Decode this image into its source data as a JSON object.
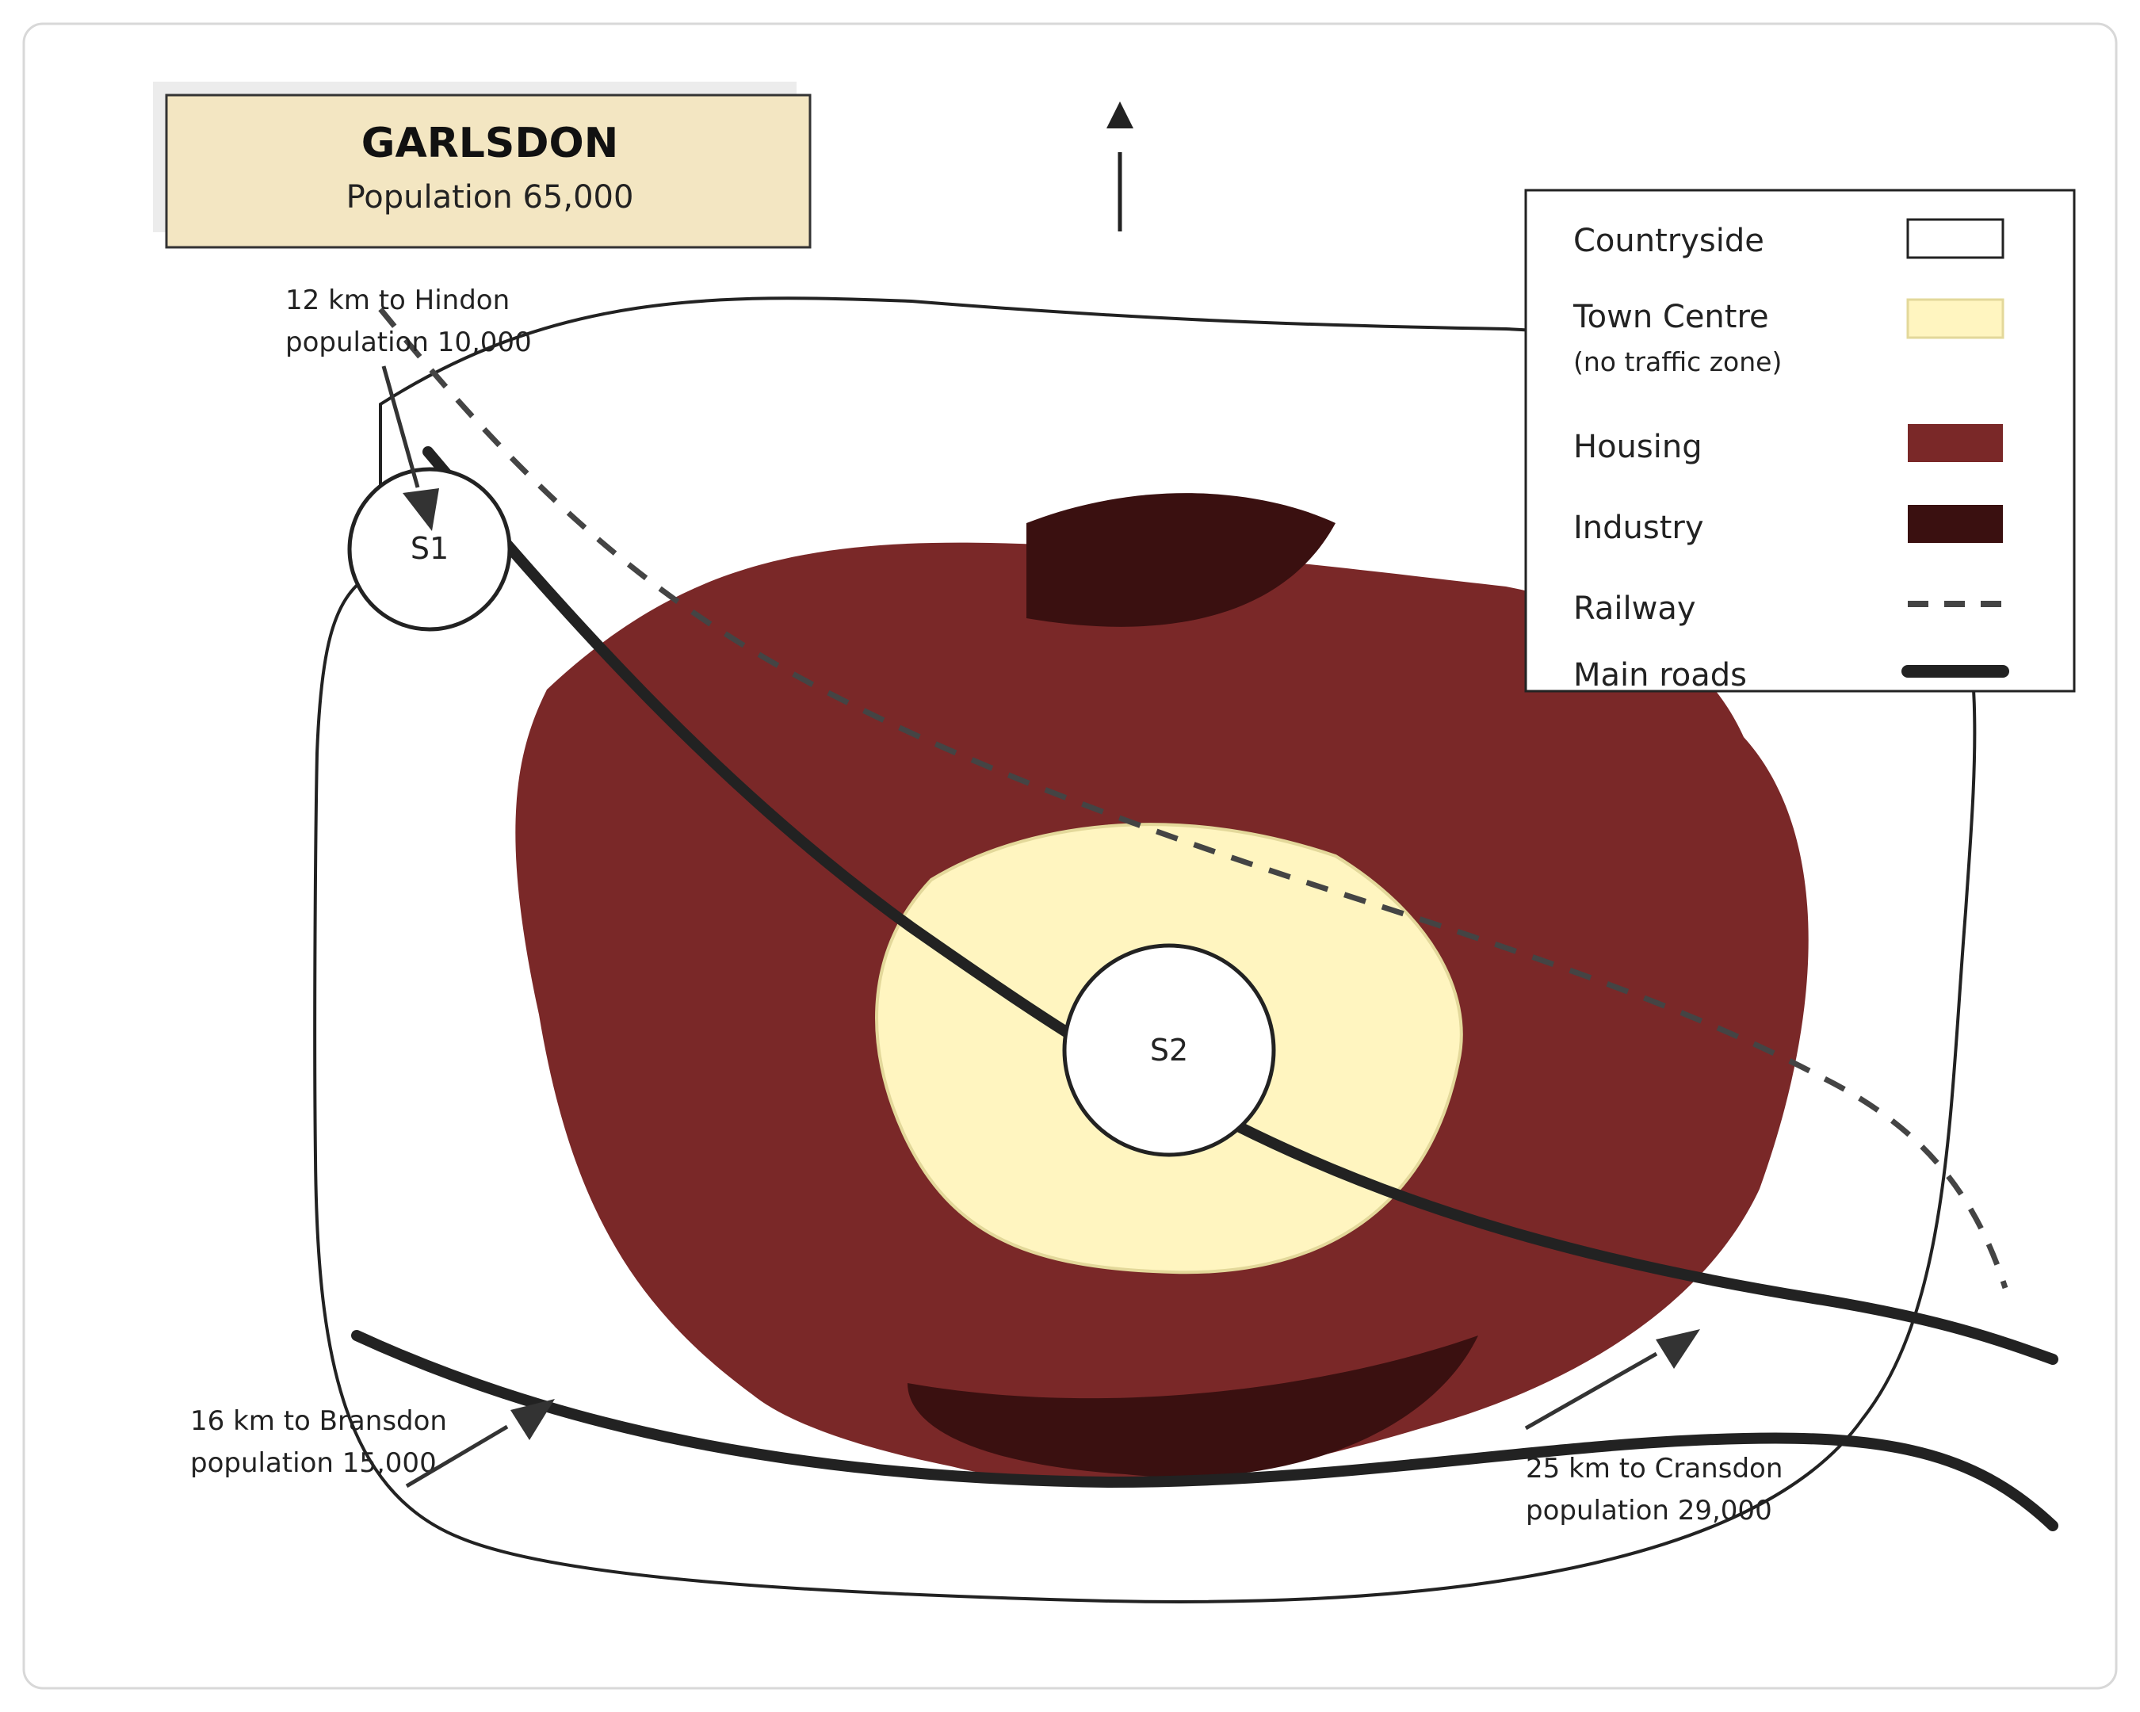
{
  "title": {
    "name": "GARLSDON",
    "population": "Population 65,000"
  },
  "stations": {
    "s1": "S1",
    "s2": "S2"
  },
  "connections": {
    "hindon": {
      "line1": "12 km to Hindon",
      "line2": "population 10,000"
    },
    "bransdon": {
      "line1": "16 km to Bransdon",
      "line2": "population 15,000"
    },
    "cransdon": {
      "line1": "25 km to Cransdon",
      "line2": "population 29,000"
    }
  },
  "legend": {
    "items": [
      {
        "label": "Countryside",
        "swatch": "box-white"
      },
      {
        "label": "Town Centre",
        "sublabel": "(no traffic zone)",
        "swatch": "box-yellow"
      },
      {
        "label": "Housing",
        "swatch": "box-housing"
      },
      {
        "label": "Industry",
        "swatch": "box-industry"
      },
      {
        "label": "Railway",
        "swatch": "dashed-line"
      },
      {
        "label": "Main roads",
        "swatch": "thick-line"
      }
    ]
  },
  "icons": {
    "north": "north-arrow-icon"
  },
  "colors": {
    "countryside": "#ffffff",
    "town_centre": "#fff5c0",
    "housing": "#7a2828",
    "industry": "#3a1010",
    "road": "#222222",
    "railway": "#444444",
    "title_bg": "#f3e6c2"
  }
}
